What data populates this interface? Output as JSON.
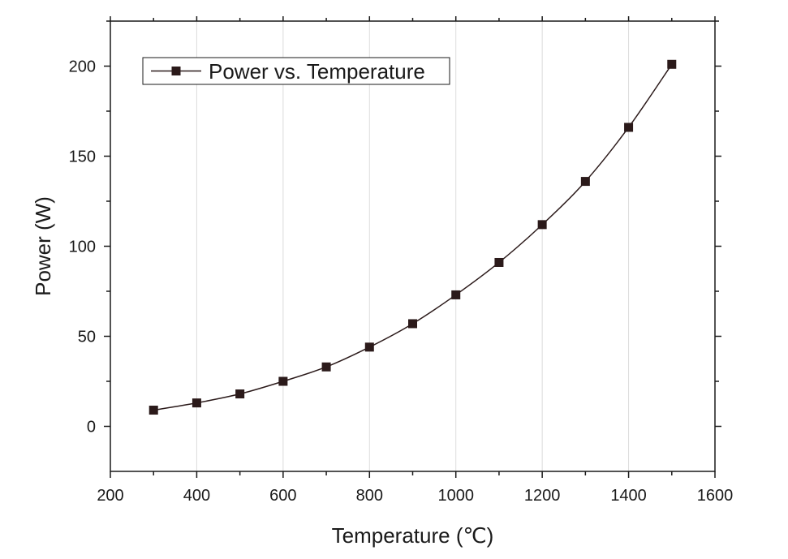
{
  "chart_data": {
    "type": "line",
    "title": "",
    "xlabel": "Temperature (℃)",
    "ylabel": "Power (W)",
    "xlim": [
      200,
      1600
    ],
    "ylim": [
      -25,
      225
    ],
    "x_ticks": [
      200,
      400,
      600,
      800,
      1000,
      1200,
      1400,
      1600
    ],
    "y_ticks": [
      0,
      50,
      100,
      150,
      200
    ],
    "grid": "vertical",
    "legend_position": "top-left",
    "series": [
      {
        "name": "Power vs. Temperature",
        "color": "#2b1a1a",
        "marker": "square",
        "x": [
          300,
          400,
          500,
          600,
          700,
          800,
          900,
          1000,
          1100,
          1200,
          1300,
          1400,
          1500
        ],
        "y": [
          9,
          13,
          18,
          25,
          33,
          44,
          57,
          73,
          91,
          112,
          136,
          166,
          201
        ]
      }
    ]
  }
}
